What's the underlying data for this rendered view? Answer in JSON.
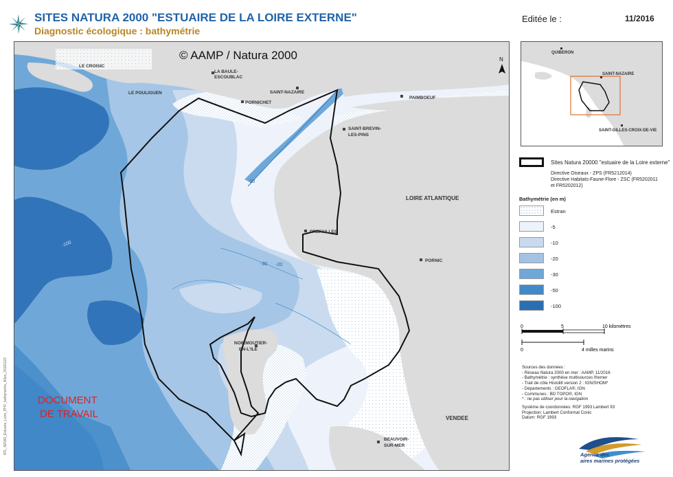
{
  "header": {
    "title": "SITES NATURA 2000 \"ESTUAIRE DE LA LOIRE EXTERNE\"",
    "subtitle": "Diagnostic écologique : bathymétrie",
    "edited_label": "Editée le :",
    "edited_date": "11/2016"
  },
  "map": {
    "copyright": "© AAMP / Natura 2000",
    "work_stamp_line1": "DOCUMENT",
    "work_stamp_line2": "DE TRAVAIL",
    "north_letter": "N",
    "side_note": "ATL_N2000_Estuaire_Loire_PHY_bathymetrie_A3px_20161122",
    "places": {
      "le_croisic": "LE CROISIC",
      "le_pouliguen": "LE POULIGUEN",
      "la_baule_1": "LA BAULE-",
      "la_baule_2": "ESCOUBLAC",
      "pornichet": "PORNICHET",
      "saint_nazaire": "SAINT-NAZAIRE",
      "paimboeuf": "PAIMBOEUF",
      "saint_brevin_1": "SAINT-BREVIN-",
      "saint_brevin_2": "LES-PINS",
      "loire_atlantique": "LOIRE ATLANTIQUE",
      "prefailles": "PREFAILLES",
      "pornic": "PORNIC",
      "noirmoutier_1": "NOIRMOUTIER-",
      "noirmoutier_2": "EN-L'ILE",
      "vendee": "VENDEE",
      "beauvoir_1": "BEAUVOIR-",
      "beauvoir_2": "SUR-MER"
    },
    "depth_labels": {
      "d10_estuary": "-10",
      "d20_channel": "-20",
      "d30_middle": "-30",
      "d100_west": "-100"
    }
  },
  "inset": {
    "quiberon": "QUIBERON",
    "saint_nazaire": "SAINT-NAZAIRE",
    "saint_gilles": "SAINT-GILLES-CROIX-DE-VIE"
  },
  "legend": {
    "natura_site": "Sites Natura 20000 \"estuaire de la Loire externe\"",
    "zps": "Directive Oiseaux - ZPS (FR5212014)",
    "zsc_1": "Directive Habitats-Faune-Flore - ZSC (FR5202011",
    "zsc_2": "et FR5202012)",
    "bathy_title": "Bathymétrie (en m)",
    "bathy_classes": [
      {
        "label": "Estran",
        "color": "#ffffff"
      },
      {
        "label": "-5",
        "color": "#eef3fb"
      },
      {
        "label": "-10",
        "color": "#c9daef"
      },
      {
        "label": "-20",
        "color": "#a3c3e3"
      },
      {
        "label": "-30",
        "color": "#6ea7d8"
      },
      {
        "label": "-50",
        "color": "#4189c9"
      },
      {
        "label": "-100",
        "color": "#2a6fb3"
      }
    ]
  },
  "scale": {
    "km_ticks": [
      "0",
      "5",
      "10 kilomètres"
    ],
    "nm_ticks": [
      "0",
      "4 milles marins"
    ]
  },
  "sources": {
    "title": "Sources des données :",
    "lines": [
      "- Réseau Natura 2000 en mer : AAMP, 11/2016",
      "- Bathymétrie : synthèse multisources Ifremer",
      "- Trait de côte Histolitt version 2 : IGN/SHOM*",
      "- Départements : GEOFLA®, IGN",
      "- Communes : BD TOPO®, IGN",
      "* : ne pas utiliser pour la navigation"
    ],
    "system_lines": [
      "Système de coordonnées: RGF 1993 Lambert 93",
      "Projection: Lambert Conformal Conic",
      "Datum: RGF 1993"
    ]
  },
  "logo": {
    "line1": "Agence des",
    "line2": "aires marines protégées"
  },
  "colors": {
    "title_blue": "#1f63a8",
    "subtitle_gold": "#b78523",
    "land_gray": "#dcdcdc",
    "stamp_red": "#e02020"
  }
}
